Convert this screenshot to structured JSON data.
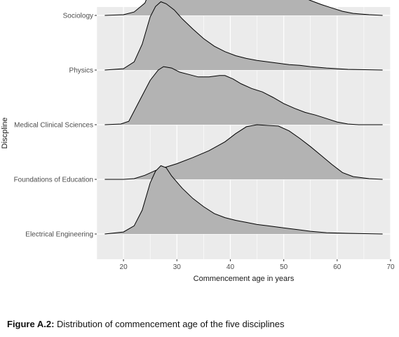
{
  "chart_data": {
    "type": "ridgeline-density",
    "xlabel": "Commencement age in years",
    "ylabel": "Discpline",
    "xlim": [
      15,
      70
    ],
    "xticks": [
      20,
      30,
      40,
      50,
      60,
      70
    ],
    "grid": true,
    "background": "#ebebeb",
    "fill_color": "#b3b3b3",
    "series": [
      {
        "name": "Electrical Engineering",
        "points": [
          [
            16.5,
            0
          ],
          [
            20,
            0.03
          ],
          [
            22,
            0.12
          ],
          [
            23.5,
            0.35
          ],
          [
            25,
            0.75
          ],
          [
            26,
            0.92
          ],
          [
            27,
            1.0
          ],
          [
            28,
            0.97
          ],
          [
            29,
            0.85
          ],
          [
            31,
            0.67
          ],
          [
            33,
            0.52
          ],
          [
            35,
            0.4
          ],
          [
            37,
            0.3
          ],
          [
            39,
            0.24
          ],
          [
            41,
            0.2
          ],
          [
            43,
            0.17
          ],
          [
            45,
            0.14
          ],
          [
            47,
            0.12
          ],
          [
            49,
            0.1
          ],
          [
            51,
            0.08
          ],
          [
            53,
            0.06
          ],
          [
            55,
            0.04
          ],
          [
            58,
            0.02
          ],
          [
            62,
            0.01
          ],
          [
            68.5,
            0
          ]
        ]
      },
      {
        "name": "Foundations of Education",
        "points": [
          [
            16.5,
            0
          ],
          [
            20,
            0
          ],
          [
            22,
            0.01
          ],
          [
            24,
            0.06
          ],
          [
            26,
            0.13
          ],
          [
            28,
            0.18
          ],
          [
            30,
            0.23
          ],
          [
            33,
            0.32
          ],
          [
            36,
            0.42
          ],
          [
            39,
            0.55
          ],
          [
            41,
            0.67
          ],
          [
            43,
            0.77
          ],
          [
            45,
            0.8
          ],
          [
            47,
            0.79
          ],
          [
            49,
            0.78
          ],
          [
            51,
            0.71
          ],
          [
            53,
            0.6
          ],
          [
            55,
            0.48
          ],
          [
            57,
            0.35
          ],
          [
            59,
            0.22
          ],
          [
            61,
            0.1
          ],
          [
            63,
            0.04
          ],
          [
            66,
            0.01
          ],
          [
            68.5,
            0
          ]
        ]
      },
      {
        "name": "Medical Clinical Sciences",
        "points": [
          [
            16.5,
            0
          ],
          [
            19.5,
            0.01
          ],
          [
            21,
            0.05
          ],
          [
            23,
            0.35
          ],
          [
            25,
            0.65
          ],
          [
            26.5,
            0.8
          ],
          [
            27.5,
            0.85
          ],
          [
            29,
            0.83
          ],
          [
            30.5,
            0.77
          ],
          [
            32,
            0.74
          ],
          [
            34,
            0.7
          ],
          [
            36,
            0.7
          ],
          [
            38,
            0.72
          ],
          [
            39,
            0.72
          ],
          [
            40.5,
            0.67
          ],
          [
            42,
            0.6
          ],
          [
            44,
            0.53
          ],
          [
            46,
            0.48
          ],
          [
            48,
            0.4
          ],
          [
            50,
            0.31
          ],
          [
            52,
            0.24
          ],
          [
            54,
            0.18
          ],
          [
            56,
            0.14
          ],
          [
            58,
            0.09
          ],
          [
            60,
            0.04
          ],
          [
            62,
            0.01
          ],
          [
            64,
            0
          ],
          [
            68.5,
            0
          ]
        ]
      },
      {
        "name": "Physics",
        "points": [
          [
            16.5,
            0
          ],
          [
            20,
            0.02
          ],
          [
            22,
            0.12
          ],
          [
            23.5,
            0.38
          ],
          [
            25,
            0.78
          ],
          [
            26,
            0.93
          ],
          [
            27,
            1.0
          ],
          [
            28,
            0.97
          ],
          [
            29.5,
            0.88
          ],
          [
            31,
            0.75
          ],
          [
            33,
            0.6
          ],
          [
            35,
            0.46
          ],
          [
            37,
            0.35
          ],
          [
            39,
            0.27
          ],
          [
            41,
            0.21
          ],
          [
            43,
            0.17
          ],
          [
            45,
            0.14
          ],
          [
            47,
            0.12
          ],
          [
            49,
            0.1
          ],
          [
            51,
            0.08
          ],
          [
            53,
            0.07
          ],
          [
            55,
            0.05
          ],
          [
            58,
            0.03
          ],
          [
            62,
            0.01
          ],
          [
            68.5,
            0
          ]
        ]
      },
      {
        "name": "Sociology",
        "points": [
          [
            16.5,
            0
          ],
          [
            20,
            0.01
          ],
          [
            22,
            0.05
          ],
          [
            24,
            0.18
          ],
          [
            26,
            0.55
          ],
          [
            28,
            0.82
          ],
          [
            29.5,
            0.88
          ],
          [
            31,
            0.86
          ],
          [
            33,
            0.78
          ],
          [
            35,
            0.72
          ],
          [
            37,
            0.66
          ],
          [
            39,
            0.63
          ],
          [
            41,
            0.62
          ],
          [
            43,
            0.6
          ],
          [
            45,
            0.53
          ],
          [
            47,
            0.43
          ],
          [
            49,
            0.38
          ],
          [
            51,
            0.34
          ],
          [
            53,
            0.28
          ],
          [
            55,
            0.22
          ],
          [
            57,
            0.16
          ],
          [
            59,
            0.11
          ],
          [
            61,
            0.06
          ],
          [
            63,
            0.03
          ],
          [
            66,
            0.01
          ],
          [
            68.5,
            0
          ]
        ]
      }
    ]
  },
  "caption": {
    "label": "Figure A.2:",
    "text": " Distribution of commencement age of the five disciplines"
  }
}
